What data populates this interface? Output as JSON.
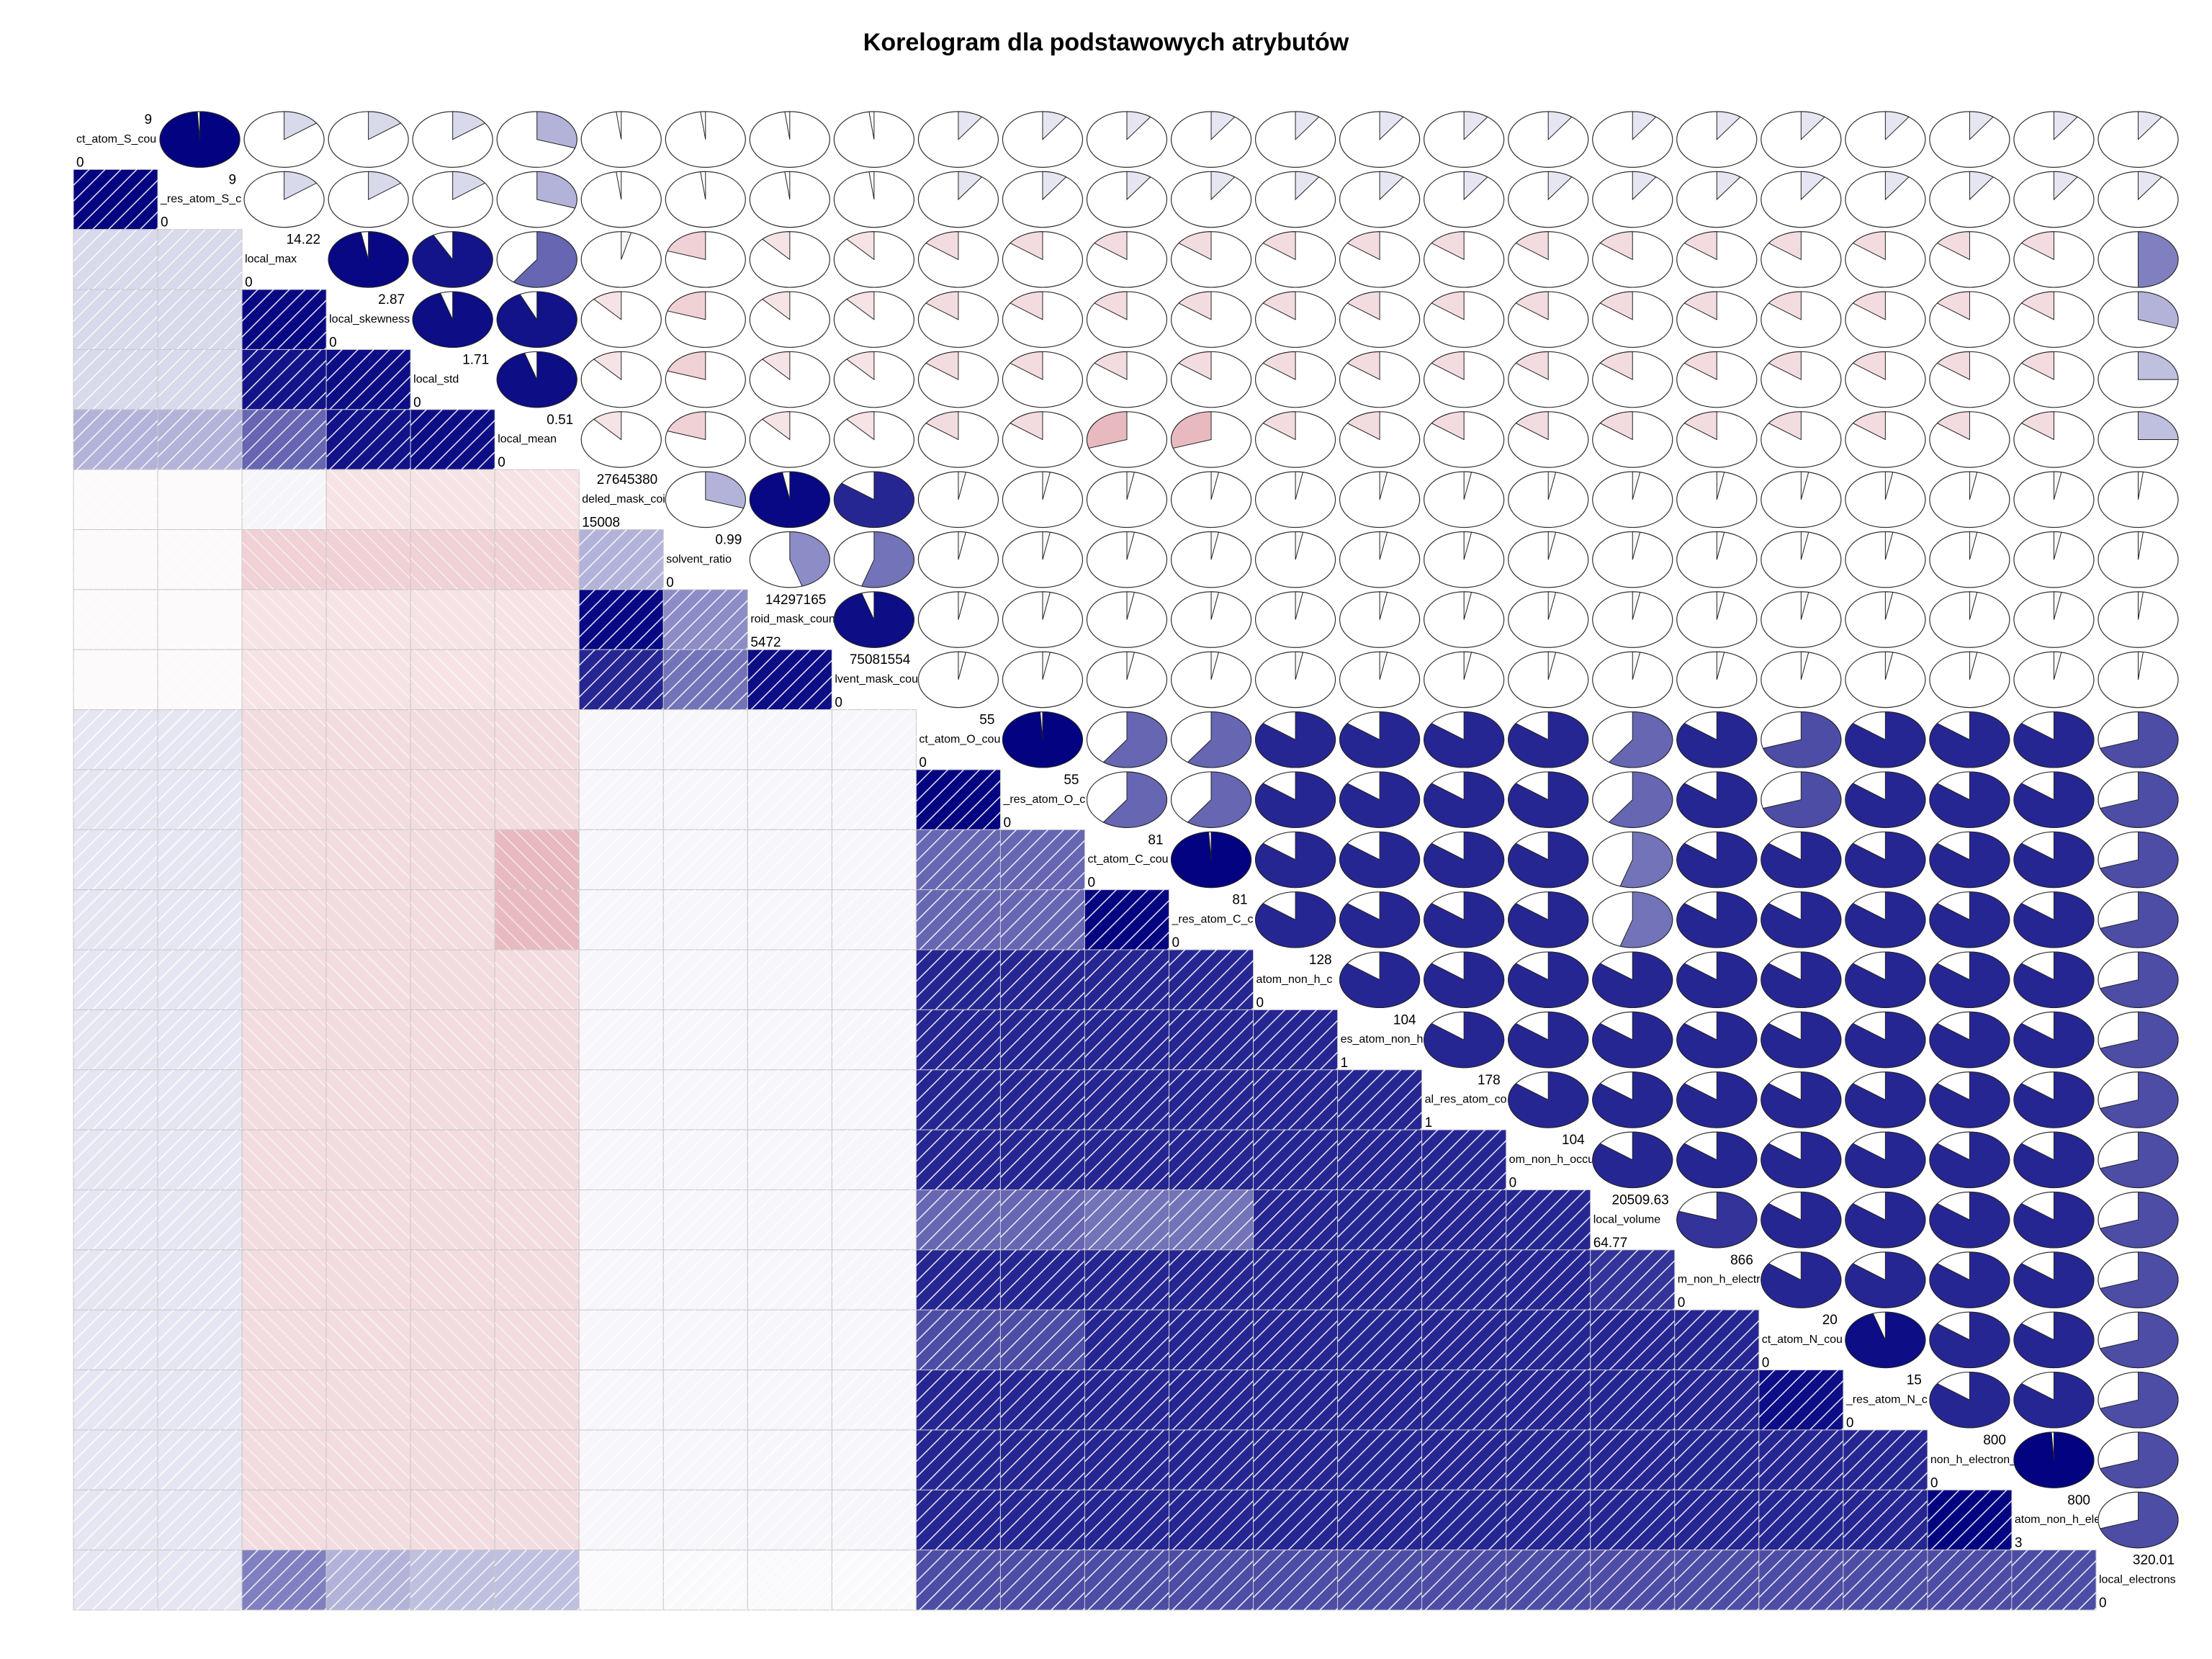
{
  "chart_data": {
    "type": "heatmap",
    "title": "Korelogram dla podstawowych atrybutów",
    "lower_panel": "shade",
    "upper_panel": "pie",
    "diagonal_panel": "minmax",
    "variables": [
      {
        "label": "ct_atom_S_cou",
        "max": "9",
        "min": "0"
      },
      {
        "label": "_res_atom_S_c",
        "max": "9",
        "min": "0"
      },
      {
        "label": "local_max",
        "max": "14.22",
        "min": "0"
      },
      {
        "label": "local_skewness",
        "max": "2.87",
        "min": "0"
      },
      {
        "label": "local_std",
        "max": "1.71",
        "min": "0"
      },
      {
        "label": "local_mean",
        "max": "0.51",
        "min": "0"
      },
      {
        "label": "deled_mask_coi",
        "max": "27645380",
        "min": "15008"
      },
      {
        "label": "solvent_ratio",
        "max": "0.99",
        "min": "0"
      },
      {
        "label": "roid_mask_coun",
        "max": "14297165",
        "min": "5472"
      },
      {
        "label": "lvent_mask_cou",
        "max": "75081554",
        "min": "0"
      },
      {
        "label": "ct_atom_O_cou",
        "max": "55",
        "min": "0"
      },
      {
        "label": "_res_atom_O_c",
        "max": "55",
        "min": "0"
      },
      {
        "label": "ct_atom_C_cou",
        "max": "81",
        "min": "0"
      },
      {
        "label": "_res_atom_C_c",
        "max": "81",
        "min": "0"
      },
      {
        "label": "atom_non_h_c",
        "max": "128",
        "min": "0"
      },
      {
        "label": "es_atom_non_h",
        "max": "104",
        "min": "1"
      },
      {
        "label": "al_res_atom_co",
        "max": "178",
        "min": "1"
      },
      {
        "label": "om_non_h_occu",
        "max": "104",
        "min": "0"
      },
      {
        "label": "local_volume",
        "max": "20509.63",
        "min": "64.77"
      },
      {
        "label": "m_non_h_electr",
        "max": "866",
        "min": "0"
      },
      {
        "label": "ct_atom_N_cou",
        "max": "20",
        "min": "0"
      },
      {
        "label": "_res_atom_N_c",
        "max": "15",
        "min": "0"
      },
      {
        "label": "non_h_electron_",
        "max": "800",
        "min": "0"
      },
      {
        "label": "atom_non_h_ele",
        "max": "800",
        "min": "3"
      },
      {
        "label": "local_electrons",
        "max": "320.01",
        "min": "0"
      }
    ],
    "groups": {
      "S": [
        0,
        1
      ],
      "local": [
        2,
        3,
        4,
        5
      ],
      "mask": [
        6,
        7,
        8,
        9
      ],
      "atoms": [
        10,
        11,
        12,
        13,
        14,
        15,
        16,
        17,
        18,
        19,
        20,
        21,
        22,
        23
      ],
      "electrons": [
        24
      ]
    },
    "group_correlations": {
      "S_S": 1.0,
      "S_local": 0.15,
      "S_mask": -0.02,
      "S_atoms": 0.1,
      "S_electrons": 0.1,
      "local_local": 0.95,
      "local_mask": -0.12,
      "local_atoms": -0.15,
      "local_electrons": 0.25,
      "mask_mask": 0.8,
      "mask_atoms": 0.03,
      "mask_electrons": 0.02,
      "atoms_atoms": 0.85,
      "atoms_electrons": 0.7
    },
    "correlation_overrides": [
      {
        "i": 1,
        "j": 0,
        "r": 0.99
      },
      {
        "i": 3,
        "j": 2,
        "r": 0.97
      },
      {
        "i": 4,
        "j": 2,
        "r": 0.92
      },
      {
        "i": 4,
        "j": 3,
        "r": 0.95
      },
      {
        "i": 5,
        "j": 0,
        "r": 0.3
      },
      {
        "i": 5,
        "j": 1,
        "r": 0.3
      },
      {
        "i": 5,
        "j": 2,
        "r": 0.6
      },
      {
        "i": 5,
        "j": 3,
        "r": 0.93
      },
      {
        "i": 5,
        "j": 4,
        "r": 0.95
      },
      {
        "i": 6,
        "j": 2,
        "r": 0.04
      },
      {
        "i": 7,
        "j": 2,
        "r": -0.2
      },
      {
        "i": 7,
        "j": 3,
        "r": -0.2
      },
      {
        "i": 7,
        "j": 4,
        "r": -0.2
      },
      {
        "i": 7,
        "j": 5,
        "r": -0.2
      },
      {
        "i": 7,
        "j": 6,
        "r": 0.3
      },
      {
        "i": 8,
        "j": 6,
        "r": 0.97
      },
      {
        "i": 8,
        "j": 7,
        "r": 0.45
      },
      {
        "i": 9,
        "j": 6,
        "r": 0.85
      },
      {
        "i": 9,
        "j": 7,
        "r": 0.55
      },
      {
        "i": 9,
        "j": 8,
        "r": 0.95
      },
      {
        "i": 11,
        "j": 10,
        "r": 0.99
      },
      {
        "i": 12,
        "j": 10,
        "r": 0.6
      },
      {
        "i": 12,
        "j": 11,
        "r": 0.6
      },
      {
        "i": 13,
        "j": 10,
        "r": 0.6
      },
      {
        "i": 13,
        "j": 11,
        "r": 0.6
      },
      {
        "i": 13,
        "j": 12,
        "r": 0.99
      },
      {
        "i": 12,
        "j": 5,
        "r": -0.3
      },
      {
        "i": 13,
        "j": 5,
        "r": -0.3
      },
      {
        "i": 18,
        "j": 10,
        "r": 0.6
      },
      {
        "i": 18,
        "j": 11,
        "r": 0.6
      },
      {
        "i": 18,
        "j": 12,
        "r": 0.55
      },
      {
        "i": 18,
        "j": 13,
        "r": 0.55
      },
      {
        "i": 19,
        "j": 18,
        "r": 0.8
      },
      {
        "i": 20,
        "j": 10,
        "r": 0.7
      },
      {
        "i": 20,
        "j": 11,
        "r": 0.7
      },
      {
        "i": 21,
        "j": 20,
        "r": 0.95
      },
      {
        "i": 23,
        "j": 22,
        "r": 0.99
      },
      {
        "i": 24,
        "j": 2,
        "r": 0.5
      },
      {
        "i": 24,
        "j": 3,
        "r": 0.3
      }
    ],
    "color_scale": {
      "negative": "#B2182B",
      "neutral": "#FFFFFF",
      "positive": "#000080"
    }
  }
}
